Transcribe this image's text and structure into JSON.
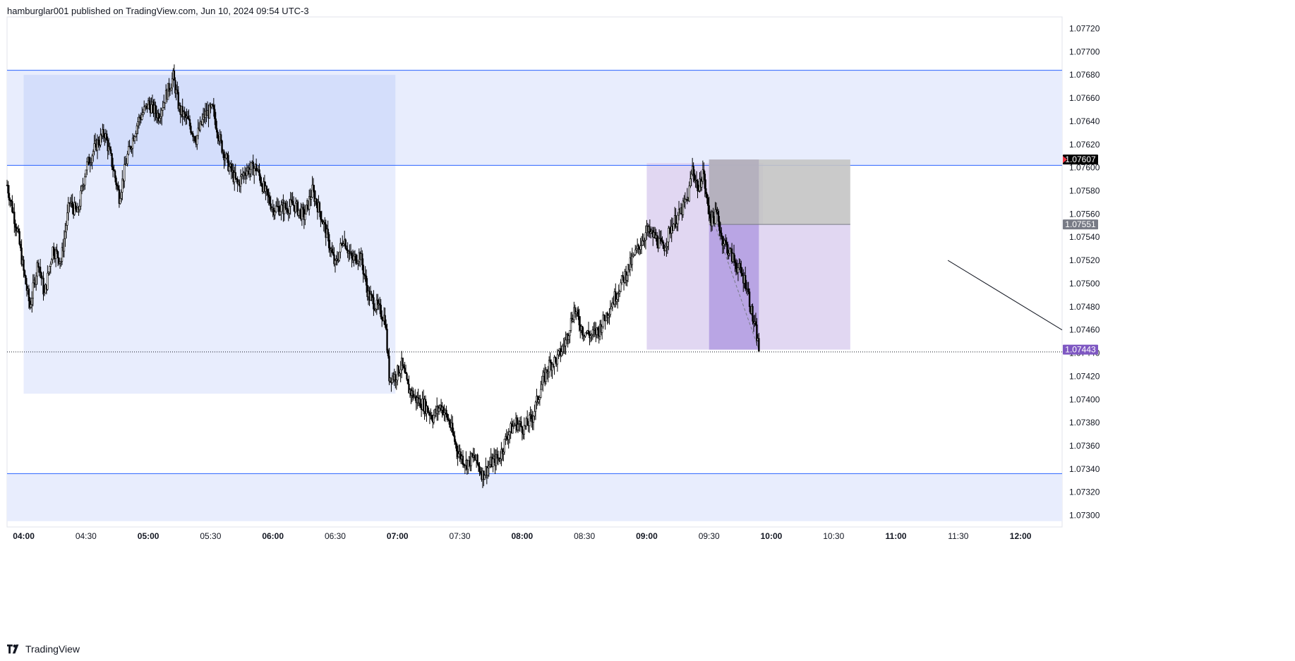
{
  "header": {
    "attribution": "hamburglar001 published on TradingView.com, Jun 10, 2024 09:54 UTC-3"
  },
  "footer": {
    "brand": "TradingView",
    "logo_icon": "tradingview-logo-icon"
  },
  "colors": {
    "zone_fill": "#e8edfd",
    "zone_fill_dark": "#d4defb",
    "zone_line": "#2962ff",
    "long_short_stop": "#b2b5be",
    "target_fill": "#e1d7f2",
    "target_fill_dark": "#b9a5e4",
    "candle": "#000000",
    "price_tag_last": "#7e57c2",
    "price_tag_high": "#000000",
    "price_tag_entry": "#787b86"
  },
  "chart_data": {
    "type": "candlestick",
    "title": "",
    "xlabel": "",
    "ylabel": "",
    "ylim": [
      1.0729,
      1.0773
    ],
    "x_ticks": [
      {
        "label": "04:00",
        "bold": true,
        "t": "04:00"
      },
      {
        "label": "04:30",
        "bold": false,
        "t": "04:30"
      },
      {
        "label": "05:00",
        "bold": true,
        "t": "05:00"
      },
      {
        "label": "05:30",
        "bold": false,
        "t": "05:30"
      },
      {
        "label": "06:00",
        "bold": true,
        "t": "06:00"
      },
      {
        "label": "06:30",
        "bold": false,
        "t": "06:30"
      },
      {
        "label": "07:00",
        "bold": true,
        "t": "07:00"
      },
      {
        "label": "07:30",
        "bold": false,
        "t": "07:30"
      },
      {
        "label": "08:00",
        "bold": true,
        "t": "08:00"
      },
      {
        "label": "08:30",
        "bold": false,
        "t": "08:30"
      },
      {
        "label": "09:00",
        "bold": true,
        "t": "09:00"
      },
      {
        "label": "09:30",
        "bold": false,
        "t": "09:30"
      },
      {
        "label": "10:00",
        "bold": true,
        "t": "10:00"
      },
      {
        "label": "10:30",
        "bold": false,
        "t": "10:30"
      },
      {
        "label": "11:00",
        "bold": true,
        "t": "11:00"
      },
      {
        "label": "11:30",
        "bold": false,
        "t": "11:30"
      },
      {
        "label": "12:00",
        "bold": true,
        "t": "12:00"
      }
    ],
    "y_ticks": [
      "1.07300",
      "1.07320",
      "1.07340",
      "1.07360",
      "1.07380",
      "1.07400",
      "1.07420",
      "1.07440",
      "1.07460",
      "1.07480",
      "1.07500",
      "1.07520",
      "1.07540",
      "1.07560",
      "1.07580",
      "1.07600",
      "1.07620",
      "1.07640",
      "1.07660",
      "1.07680",
      "1.07700",
      "1.07720"
    ],
    "x_range": [
      "03:52",
      "12:20"
    ],
    "price_tags": [
      {
        "label": "1.07607",
        "value": 1.07607,
        "kind": "high"
      },
      {
        "label": "1.07551",
        "value": 1.07551,
        "kind": "entry"
      },
      {
        "label": "1.07443",
        "value": 1.07443,
        "kind": "last"
      }
    ],
    "horizontal_lines": [
      {
        "value": 1.07684,
        "style": "solid"
      },
      {
        "value": 1.07602,
        "style": "solid"
      },
      {
        "value": 1.07336,
        "style": "solid"
      },
      {
        "value": 1.07441,
        "style": "dotted"
      }
    ],
    "zones": [
      {
        "name": "",
        "t_start": "03:52",
        "t_end": "12:20",
        "top": 1.07684,
        "bottom": 1.07602,
        "shade": "zone_fill"
      },
      {
        "name": "",
        "t_start": "03:52",
        "t_end": "12:20",
        "top": 1.07336,
        "bottom": 1.07295,
        "shade": "zone_fill"
      },
      {
        "name": "",
        "t_start": "04:00",
        "t_end": "06:59",
        "top": 1.0768,
        "bottom": 1.07405,
        "shade": "zone_fill"
      },
      {
        "name": "",
        "t_start": "04:00",
        "t_end": "06:59",
        "top": 1.0768,
        "bottom": 1.07602,
        "shade": "zone_fill_dark"
      },
      {
        "name": "",
        "t_start": "09:00",
        "t_end": "09:56",
        "top": 1.07604,
        "bottom": 1.07443,
        "shade": "target_fill"
      }
    ],
    "position": {
      "type": "short",
      "t_start": "09:30",
      "t_end": "10:38",
      "t_now": "09:54",
      "entry": 1.07551,
      "stop": 1.07607,
      "target": 1.07443
    },
    "trend_line": {
      "t1": "11:25",
      "p1": 1.0752,
      "t2": "12:20",
      "p2": 1.0746
    },
    "price_path": [
      {
        "t": "03:52",
        "p": 1.07585
      },
      {
        "t": "03:57",
        "p": 1.07545
      },
      {
        "t": "04:00",
        "p": 1.0751
      },
      {
        "t": "04:03",
        "p": 1.0748
      },
      {
        "t": "04:07",
        "p": 1.0752
      },
      {
        "t": "04:10",
        "p": 1.0749
      },
      {
        "t": "04:14",
        "p": 1.0753
      },
      {
        "t": "04:18",
        "p": 1.0752
      },
      {
        "t": "04:22",
        "p": 1.0757
      },
      {
        "t": "04:26",
        "p": 1.0756
      },
      {
        "t": "04:30",
        "p": 1.076
      },
      {
        "t": "04:35",
        "p": 1.0762
      },
      {
        "t": "04:39",
        "p": 1.0763
      },
      {
        "t": "04:43",
        "p": 1.076
      },
      {
        "t": "04:46",
        "p": 1.07575
      },
      {
        "t": "04:50",
        "p": 1.0761
      },
      {
        "t": "04:55",
        "p": 1.0764
      },
      {
        "t": "05:00",
        "p": 1.07655
      },
      {
        "t": "05:05",
        "p": 1.07645
      },
      {
        "t": "05:08",
        "p": 1.0766
      },
      {
        "t": "05:12",
        "p": 1.07678
      },
      {
        "t": "05:15",
        "p": 1.0765
      },
      {
        "t": "05:19",
        "p": 1.0764
      },
      {
        "t": "05:23",
        "p": 1.07625
      },
      {
        "t": "05:27",
        "p": 1.07645
      },
      {
        "t": "05:31",
        "p": 1.0765
      },
      {
        "t": "05:35",
        "p": 1.0762
      },
      {
        "t": "05:39",
        "p": 1.076
      },
      {
        "t": "05:43",
        "p": 1.07585
      },
      {
        "t": "05:47",
        "p": 1.07598
      },
      {
        "t": "05:52",
        "p": 1.076
      },
      {
        "t": "05:56",
        "p": 1.0758
      },
      {
        "t": "06:00",
        "p": 1.07565
      },
      {
        "t": "06:05",
        "p": 1.07565
      },
      {
        "t": "06:10",
        "p": 1.07568
      },
      {
        "t": "06:15",
        "p": 1.07558
      },
      {
        "t": "06:19",
        "p": 1.0758
      },
      {
        "t": "06:23",
        "p": 1.0756
      },
      {
        "t": "06:27",
        "p": 1.07535
      },
      {
        "t": "06:30",
        "p": 1.07515
      },
      {
        "t": "06:34",
        "p": 1.0754
      },
      {
        "t": "06:38",
        "p": 1.0752
      },
      {
        "t": "06:42",
        "p": 1.07525
      },
      {
        "t": "06:46",
        "p": 1.0749
      },
      {
        "t": "06:50",
        "p": 1.0748
      },
      {
        "t": "06:54",
        "p": 1.0747
      },
      {
        "t": "06:56",
        "p": 1.0742
      },
      {
        "t": "06:59",
        "p": 1.0742
      },
      {
        "t": "07:02",
        "p": 1.0743
      },
      {
        "t": "07:05",
        "p": 1.0741
      },
      {
        "t": "07:09",
        "p": 1.074
      },
      {
        "t": "07:13",
        "p": 1.07395
      },
      {
        "t": "07:17",
        "p": 1.07385
      },
      {
        "t": "07:21",
        "p": 1.07395
      },
      {
        "t": "07:25",
        "p": 1.0738
      },
      {
        "t": "07:29",
        "p": 1.07355
      },
      {
        "t": "07:33",
        "p": 1.07345
      },
      {
        "t": "07:37",
        "p": 1.0735
      },
      {
        "t": "07:41",
        "p": 1.07335
      },
      {
        "t": "07:45",
        "p": 1.07345
      },
      {
        "t": "07:49",
        "p": 1.0735
      },
      {
        "t": "07:53",
        "p": 1.0737
      },
      {
        "t": "07:57",
        "p": 1.0738
      },
      {
        "t": "08:01",
        "p": 1.07375
      },
      {
        "t": "08:05",
        "p": 1.07385
      },
      {
        "t": "08:09",
        "p": 1.0741
      },
      {
        "t": "08:13",
        "p": 1.0743
      },
      {
        "t": "08:17",
        "p": 1.07435
      },
      {
        "t": "08:21",
        "p": 1.0745
      },
      {
        "t": "08:25",
        "p": 1.07478
      },
      {
        "t": "08:29",
        "p": 1.0746
      },
      {
        "t": "08:33",
        "p": 1.07455
      },
      {
        "t": "08:37",
        "p": 1.0746
      },
      {
        "t": "08:41",
        "p": 1.07475
      },
      {
        "t": "08:45",
        "p": 1.0749
      },
      {
        "t": "08:49",
        "p": 1.07505
      },
      {
        "t": "08:53",
        "p": 1.0752
      },
      {
        "t": "08:57",
        "p": 1.07535
      },
      {
        "t": "09:00",
        "p": 1.07545
      },
      {
        "t": "09:04",
        "p": 1.0754
      },
      {
        "t": "09:08",
        "p": 1.0753
      },
      {
        "t": "09:12",
        "p": 1.0755
      },
      {
        "t": "09:16",
        "p": 1.0756
      },
      {
        "t": "09:20",
        "p": 1.07575
      },
      {
        "t": "09:22",
        "p": 1.076
      },
      {
        "t": "09:25",
        "p": 1.0758
      },
      {
        "t": "09:27",
        "p": 1.07598
      },
      {
        "t": "09:29",
        "p": 1.0757
      },
      {
        "t": "09:31",
        "p": 1.07555
      },
      {
        "t": "09:34",
        "p": 1.0756
      },
      {
        "t": "09:36",
        "p": 1.0754
      },
      {
        "t": "09:39",
        "p": 1.0753
      },
      {
        "t": "09:42",
        "p": 1.0752
      },
      {
        "t": "09:45",
        "p": 1.0751
      },
      {
        "t": "09:48",
        "p": 1.075
      },
      {
        "t": "09:51",
        "p": 1.0747
      },
      {
        "t": "09:53",
        "p": 1.07455
      },
      {
        "t": "09:54",
        "p": 1.07443
      }
    ]
  }
}
